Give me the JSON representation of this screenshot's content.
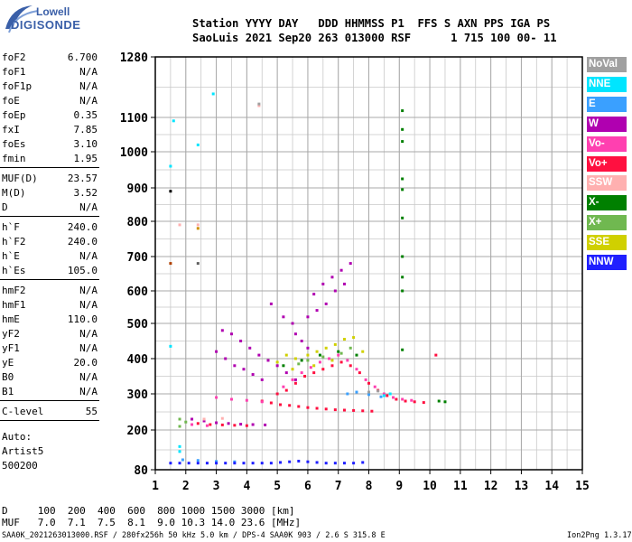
{
  "header": {
    "logo_name": "Lowell",
    "logo_brand": "DIGISONDE",
    "line1": "Station YYYY DAY   DDD HHMMSS P1  FFS S AXN PPS IGA PS",
    "line2": "SaoLuis 2021 Sep20 263 013000 RSF      1 715 100 00- 11"
  },
  "params": [
    {
      "name": "foF2",
      "value": "6.700"
    },
    {
      "name": "foF1",
      "value": "N/A"
    },
    {
      "name": "foF1p",
      "value": "N/A"
    },
    {
      "name": "foE",
      "value": "N/A"
    },
    {
      "name": "foEp",
      "value": "0.35"
    },
    {
      "name": "fxI",
      "value": "7.85"
    },
    {
      "name": "foEs",
      "value": "3.10"
    },
    {
      "name": "fmin",
      "value": "1.95"
    },
    {
      "name": "MUF(D)",
      "value": "23.57"
    },
    {
      "name": "M(D)",
      "value": "3.52"
    },
    {
      "name": "D",
      "value": "N/A"
    },
    {
      "name": "h`F",
      "value": "240.0"
    },
    {
      "name": "h`F2",
      "value": "240.0"
    },
    {
      "name": "h`E",
      "value": "N/A"
    },
    {
      "name": "h`Es",
      "value": "105.0"
    },
    {
      "name": "hmF2",
      "value": "N/A"
    },
    {
      "name": "hmF1",
      "value": "N/A"
    },
    {
      "name": "hmE",
      "value": "110.0"
    },
    {
      "name": "yF2",
      "value": "N/A"
    },
    {
      "name": "yF1",
      "value": "N/A"
    },
    {
      "name": "yE",
      "value": "20.0"
    },
    {
      "name": "B0",
      "value": "N/A"
    },
    {
      "name": "B1",
      "value": "N/A"
    },
    {
      "name": "C-level",
      "value": "55"
    }
  ],
  "auto": {
    "line1": "Auto:",
    "line2": "Artist5",
    "line3": "500200"
  },
  "legend": [
    {
      "label": "NoVal",
      "color": "#a0a0a0"
    },
    {
      "label": "NNE",
      "color": "#00e5ff"
    },
    {
      "label": "E",
      "color": "#3aa0ff"
    },
    {
      "label": "W",
      "color": "#b000b0"
    },
    {
      "label": "Vo-",
      "color": "#ff40b0"
    },
    {
      "label": "Vo+",
      "color": "#ff1040"
    },
    {
      "label": "SSW",
      "color": "#ffb0b0"
    },
    {
      "label": "X-",
      "color": "#008000"
    },
    {
      "label": "X+",
      "color": "#70b850"
    },
    {
      "label": "SSE",
      "color": "#d0d000"
    },
    {
      "label": "NNW",
      "color": "#2020ff"
    }
  ],
  "footer": {
    "d_line": "D     100  200  400  600  800 1000 1500 3000 [km]",
    "muf_line": "MUF   7.0  7.1  7.5  8.1  9.0 10.3 14.0 23.6 [MHz]",
    "file_line": "SAA0K_2021263013000.RSF / 280fx256h 50 kHz 5.0 km / DPS-4 SAA0K 903 / 2.6 S 315.8 E",
    "version": "Ion2Png 1.3.17"
  },
  "chart_data": {
    "type": "scatter",
    "x_ticks": [
      1,
      2,
      3,
      4,
      5,
      6,
      7,
      8,
      9,
      10,
      11,
      12,
      13,
      14,
      15
    ],
    "y_ticks": [
      80,
      200,
      300,
      400,
      500,
      600,
      700,
      800,
      900,
      1000,
      1100,
      1280
    ],
    "xlim": [
      1,
      15
    ],
    "ylim": [
      80,
      1280
    ],
    "grid": true,
    "legend_position": "right",
    "series": [
      {
        "name": "W",
        "color": "#b000b0",
        "points": [
          [
            3.2,
            480
          ],
          [
            3.5,
            470
          ],
          [
            3.8,
            450
          ],
          [
            4.1,
            430
          ],
          [
            4.4,
            410
          ],
          [
            4.7,
            395
          ],
          [
            5.0,
            380
          ],
          [
            5.3,
            360
          ],
          [
            5.6,
            340
          ],
          [
            3.0,
            420
          ],
          [
            3.3,
            400
          ],
          [
            3.6,
            380
          ],
          [
            3.9,
            370
          ],
          [
            4.2,
            355
          ],
          [
            4.5,
            340
          ],
          [
            6.2,
            590
          ],
          [
            6.5,
            620
          ],
          [
            6.8,
            640
          ],
          [
            7.1,
            660
          ],
          [
            7.4,
            680
          ],
          [
            6.0,
            520
          ],
          [
            6.3,
            540
          ],
          [
            6.6,
            560
          ],
          [
            6.9,
            600
          ],
          [
            7.2,
            620
          ],
          [
            2.2,
            230
          ],
          [
            2.6,
            225
          ],
          [
            3.0,
            220
          ],
          [
            3.4,
            218
          ],
          [
            3.8,
            216
          ],
          [
            4.2,
            215
          ],
          [
            4.6,
            214
          ],
          [
            5.6,
            470
          ],
          [
            5.8,
            450
          ],
          [
            6.0,
            430
          ],
          [
            4.8,
            560
          ],
          [
            5.2,
            520
          ],
          [
            5.5,
            500
          ]
        ]
      },
      {
        "name": "Vo+",
        "color": "#ff1040",
        "points": [
          [
            5.0,
            300
          ],
          [
            5.3,
            310
          ],
          [
            5.6,
            330
          ],
          [
            5.9,
            350
          ],
          [
            6.2,
            360
          ],
          [
            6.5,
            370
          ],
          [
            6.8,
            380
          ],
          [
            7.1,
            390
          ],
          [
            7.4,
            380
          ],
          [
            7.7,
            360
          ],
          [
            8.0,
            330
          ],
          [
            8.3,
            310
          ],
          [
            8.6,
            295
          ],
          [
            8.9,
            285
          ],
          [
            9.2,
            280
          ],
          [
            9.5,
            278
          ],
          [
            9.8,
            276
          ],
          [
            4.5,
            280
          ],
          [
            4.8,
            275
          ],
          [
            5.1,
            270
          ],
          [
            5.4,
            268
          ],
          [
            5.7,
            265
          ],
          [
            6.0,
            262
          ],
          [
            6.3,
            260
          ],
          [
            6.6,
            258
          ],
          [
            6.9,
            256
          ],
          [
            7.2,
            255
          ],
          [
            7.5,
            254
          ],
          [
            7.8,
            253
          ],
          [
            8.1,
            252
          ],
          [
            2.4,
            218
          ],
          [
            2.8,
            215
          ],
          [
            3.2,
            214
          ],
          [
            3.6,
            213
          ],
          [
            4.0,
            212
          ],
          [
            10.2,
            410
          ]
        ]
      },
      {
        "name": "Vo-",
        "color": "#ff40b0",
        "points": [
          [
            5.2,
            320
          ],
          [
            5.5,
            340
          ],
          [
            5.8,
            360
          ],
          [
            6.1,
            375
          ],
          [
            6.4,
            390
          ],
          [
            6.7,
            400
          ],
          [
            7.0,
            410
          ],
          [
            7.3,
            395
          ],
          [
            7.6,
            370
          ],
          [
            7.9,
            340
          ],
          [
            8.2,
            320
          ],
          [
            8.5,
            300
          ],
          [
            8.8,
            290
          ],
          [
            9.1,
            285
          ],
          [
            9.4,
            282
          ],
          [
            3.0,
            290
          ],
          [
            3.5,
            285
          ],
          [
            4.0,
            282
          ],
          [
            4.5,
            278
          ],
          [
            2.2,
            215
          ],
          [
            2.7,
            212
          ]
        ]
      },
      {
        "name": "SSE",
        "color": "#d0d000",
        "points": [
          [
            5.0,
            390
          ],
          [
            5.3,
            410
          ],
          [
            5.6,
            400
          ],
          [
            6.0,
            410
          ],
          [
            6.3,
            420
          ],
          [
            6.6,
            430
          ],
          [
            6.9,
            440
          ],
          [
            7.2,
            455
          ],
          [
            7.5,
            460
          ],
          [
            7.8,
            420
          ],
          [
            5.5,
            370
          ],
          [
            6.2,
            380
          ],
          [
            6.8,
            395
          ]
        ]
      },
      {
        "name": "X-",
        "color": "#008000",
        "points": [
          [
            9.1,
            1120
          ],
          [
            9.1,
            1065
          ],
          [
            9.1,
            1030
          ],
          [
            9.1,
            925
          ],
          [
            9.1,
            895
          ],
          [
            9.1,
            810
          ],
          [
            9.1,
            700
          ],
          [
            9.1,
            640
          ],
          [
            9.1,
            600
          ],
          [
            9.1,
            425
          ],
          [
            5.2,
            380
          ],
          [
            5.8,
            395
          ],
          [
            6.4,
            410
          ],
          [
            7.0,
            420
          ],
          [
            7.6,
            410
          ],
          [
            10.3,
            280
          ],
          [
            10.5,
            278
          ]
        ]
      },
      {
        "name": "X+",
        "color": "#70b850",
        "points": [
          [
            6.0,
            395
          ],
          [
            6.5,
            405
          ],
          [
            7.1,
            415
          ],
          [
            7.4,
            430
          ],
          [
            5.7,
            385
          ],
          [
            1.8,
            210
          ],
          [
            1.8,
            230
          ],
          [
            2.0,
            222
          ]
        ]
      },
      {
        "name": "NNE",
        "color": "#00e5ff",
        "points": [
          [
            1.5,
            960
          ],
          [
            2.4,
            1020
          ],
          [
            1.6,
            1090
          ],
          [
            2.9,
            1170
          ],
          [
            1.5,
            435
          ],
          [
            1.8,
            150
          ],
          [
            1.8,
            135
          ],
          [
            8.5,
            295
          ],
          [
            8.7,
            300
          ]
        ]
      },
      {
        "name": "E",
        "color": "#3aa0ff",
        "points": [
          [
            7.3,
            300
          ],
          [
            7.6,
            305
          ],
          [
            8.0,
            298
          ],
          [
            8.4,
            292
          ],
          [
            1.9,
            110
          ],
          [
            2.4,
            108
          ],
          [
            3.0,
            105
          ],
          [
            3.6,
            104
          ]
        ]
      },
      {
        "name": "NNW",
        "color": "#2020ff",
        "points": [
          [
            1.5,
            100
          ],
          [
            1.8,
            100
          ],
          [
            2.1,
            100
          ],
          [
            2.4,
            100
          ],
          [
            2.7,
            100
          ],
          [
            3.0,
            100
          ],
          [
            3.3,
            100
          ],
          [
            3.6,
            100
          ],
          [
            3.9,
            100
          ],
          [
            4.2,
            100
          ],
          [
            4.5,
            100
          ],
          [
            4.8,
            100
          ],
          [
            5.1,
            102
          ],
          [
            5.4,
            104
          ],
          [
            5.7,
            106
          ],
          [
            6.0,
            104
          ],
          [
            6.3,
            102
          ],
          [
            6.6,
            100
          ],
          [
            6.9,
            100
          ],
          [
            7.2,
            100
          ],
          [
            7.5,
            100
          ],
          [
            7.8,
            102
          ]
        ]
      },
      {
        "name": "SSW",
        "color": "#ffb0b0",
        "points": [
          [
            1.8,
            790
          ],
          [
            2.4,
            790
          ],
          [
            4.4,
            1135
          ],
          [
            2.6,
            230
          ],
          [
            3.2,
            232
          ]
        ]
      },
      {
        "name": "NoVal",
        "color": "#a0a0a0",
        "points": [
          [
            4.4,
            1140
          ],
          [
            8.0,
            305
          ],
          [
            8.3,
            308
          ]
        ]
      }
    ],
    "marks": [
      {
        "x": 1.5,
        "y": 890,
        "color": "#000000"
      },
      {
        "x": 1.5,
        "y": 680,
        "color": "#b04000"
      },
      {
        "x": 2.4,
        "y": 780,
        "color": "#d09000"
      },
      {
        "x": 2.4,
        "y": 680,
        "color": "#606060"
      }
    ]
  }
}
